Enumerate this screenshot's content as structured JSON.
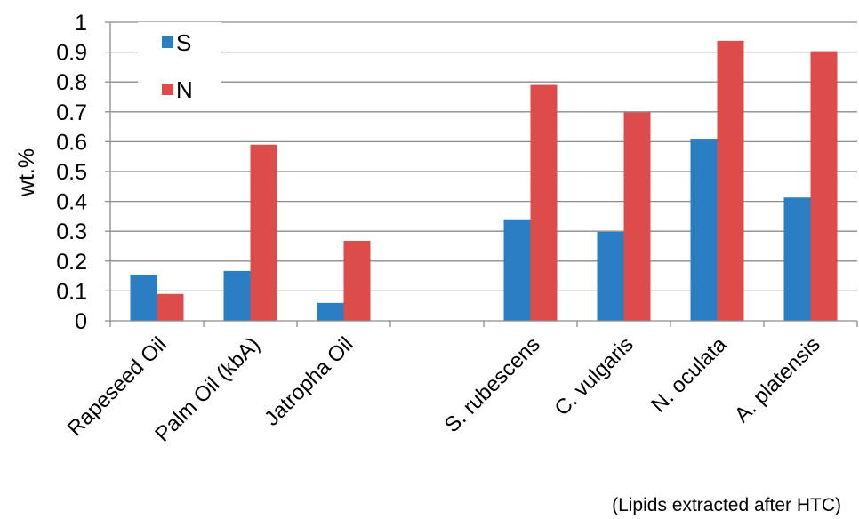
{
  "chart_data": {
    "type": "bar",
    "categories": [
      "Rapeseed Oil",
      "Palm Oil (kbA)",
      "Jatropha Oil",
      "",
      "S. rubescens",
      "C. vulgaris",
      "N. oculata",
      "A. platensis"
    ],
    "series": [
      {
        "name": "S",
        "color": "#2a7fc4",
        "values": [
          0.155,
          0.167,
          0.06,
          null,
          0.34,
          0.298,
          0.61,
          0.413
        ]
      },
      {
        "name": "N",
        "color": "#dc4c4b",
        "values": [
          0.09,
          0.59,
          0.268,
          null,
          0.79,
          0.698,
          0.938,
          0.903
        ]
      }
    ],
    "ylabel": "wt.%",
    "xlabel": "",
    "ylim": [
      0,
      1
    ],
    "yticks": [
      "0",
      "0.1",
      "0.2",
      "0.3",
      "0.4",
      "0.5",
      "0.6",
      "0.7",
      "0.8",
      "0.9",
      "1"
    ],
    "grid": true,
    "legend_position": "top-left",
    "annotation": "(Lipids extracted after HTC)"
  }
}
